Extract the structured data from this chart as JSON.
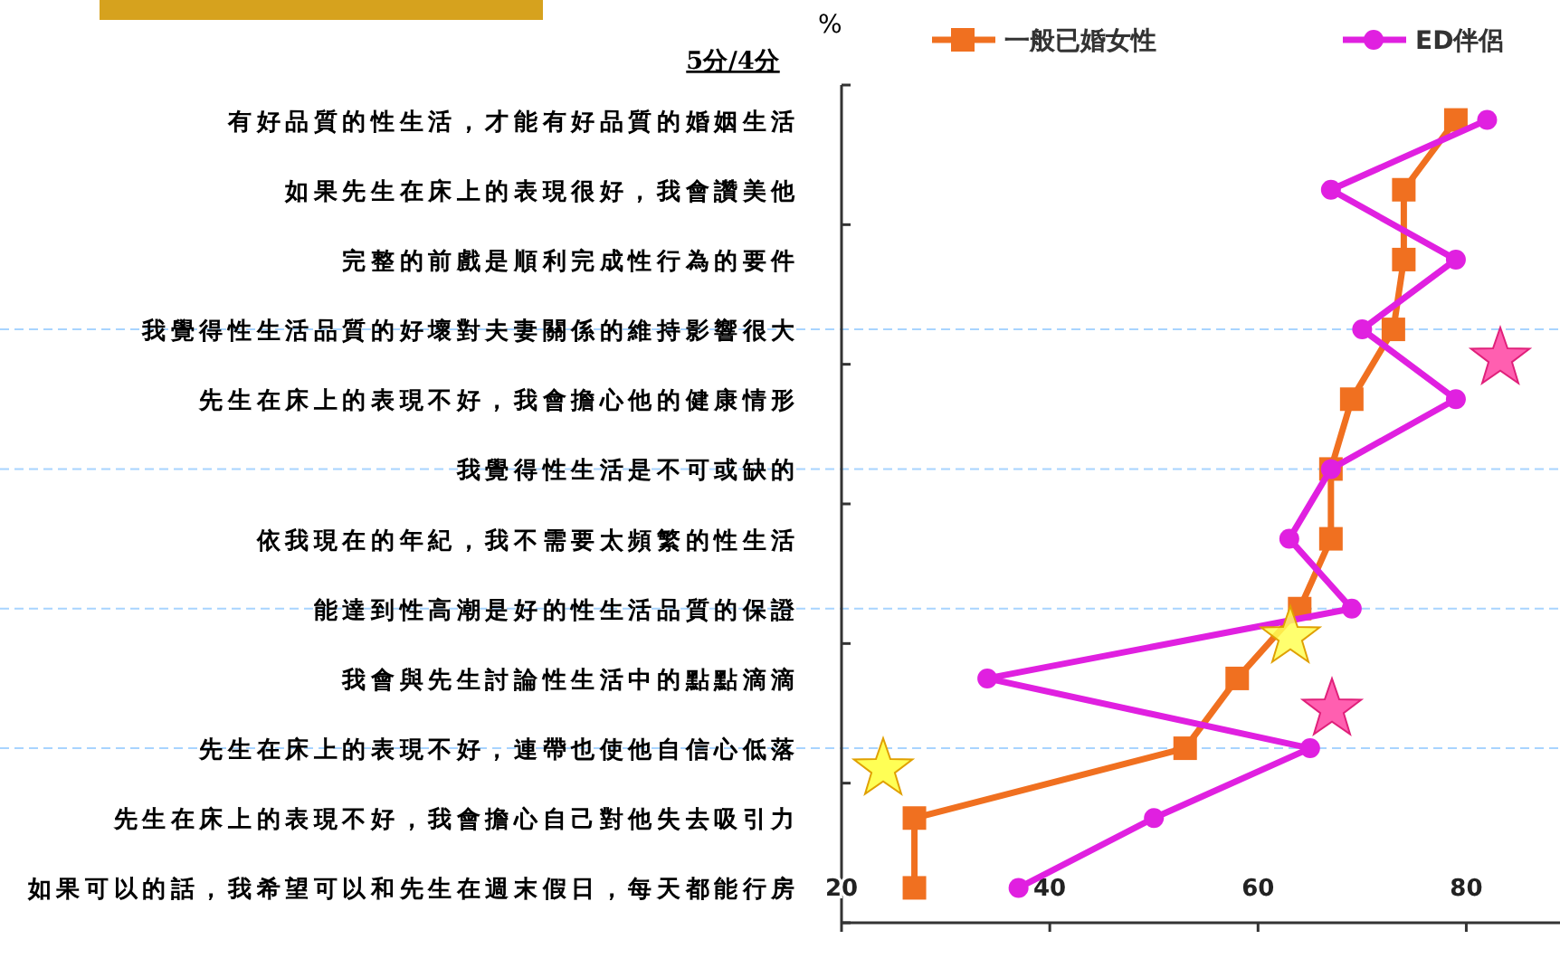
{
  "chart_data": {
    "type": "line",
    "orientation": "horizontal",
    "xlabel": "%",
    "annotations": [
      "5分/4分"
    ],
    "categories": [
      "有好品質的性生活，才能有好品質的婚姻生活",
      "如果先生在床上的表現很好，我會讚美他",
      "完整的前戲是順利完成性行為的要件",
      "我覺得性生活品質的好壞對夫妻關係的維持影響很大",
      "先生在床上的表現不好，我會擔心他的健康情形",
      "我覺得性生活是不可或缺的",
      "依我現在的年紀，我不需要太頻繁的性生活",
      "能達到性高潮是好的性生活品質的保證",
      "我會與先生討論性生活中的點點滴滴",
      "先生在床上的表現不好，連帶也使他自信心低落",
      "先生在床上的表現不好，我會擔心自己對他失去吸引力",
      "如果可以的話，我希望可以和先生在週末假日，每天都能行房"
    ],
    "series": [
      {
        "name": "一般已婚女性",
        "color": "#f07020",
        "marker": "square",
        "values": [
          79,
          74,
          74,
          73,
          69,
          67,
          67,
          64,
          58,
          53,
          27,
          27
        ]
      },
      {
        "name": "ED伴侶",
        "color": "#e020e0",
        "marker": "circle",
        "values": [
          82,
          67,
          79,
          70,
          79,
          67,
          63,
          69,
          34,
          65,
          50,
          37
        ]
      }
    ],
    "xlim": [
      20,
      89
    ],
    "xticks": [
      20,
      40,
      60,
      80
    ],
    "legend": "top",
    "ref_lines": [
      {
        "axis": "y",
        "value": "我覺得性生活品質的好壞對夫妻關係的維持影響很大",
        "color": "#a8d4ff",
        "line_style": "dashed"
      },
      {
        "axis": "y",
        "value": "我覺得性生活是不可或缺的",
        "color": "#a8d4ff",
        "line_style": "dashed"
      },
      {
        "axis": "y",
        "value": "能達到性高潮是好的性生活品質的保證",
        "color": "#a8d4ff",
        "line_style": "dashed"
      },
      {
        "axis": "y",
        "value": "先生在床上的表現不好，連帶也使他自信心低落",
        "color": "#a8d4ff",
        "line_style": "dashed"
      }
    ]
  }
}
